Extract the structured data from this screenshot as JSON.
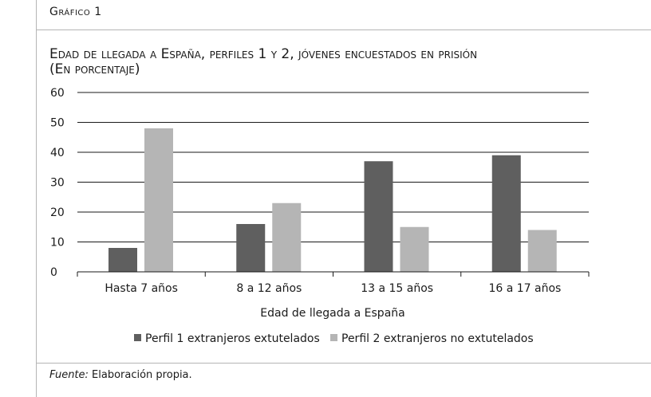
{
  "header": {
    "label": "Gráfico 1"
  },
  "chart_data": {
    "type": "bar",
    "title": "Edad de llegada a España, perfiles 1 y 2, jóvenes encuestados en prisión",
    "subtitle": "(En porcentaje)",
    "categories": [
      "Hasta 7 años",
      "8 a 12 años",
      "13 a 15 años",
      "16 a 17 años"
    ],
    "series": [
      {
        "name": "Perfil 1 extranjeros extutelados",
        "values": [
          8,
          16,
          37,
          39
        ],
        "color": "#5f5f5f"
      },
      {
        "name": "Perfil 2 extranjeros no extutelados",
        "values": [
          48,
          23,
          15,
          14
        ],
        "color": "#b5b5b5"
      }
    ],
    "xlabel": "Edad de llegada a España",
    "ylabel": "",
    "ylim": [
      0,
      60
    ],
    "yticks": [
      0,
      10,
      20,
      30,
      40,
      50,
      60
    ],
    "grid": true,
    "legend": "bottom"
  },
  "footer": {
    "source_label": "Fuente:",
    "source_text": " Elaboración propia."
  }
}
